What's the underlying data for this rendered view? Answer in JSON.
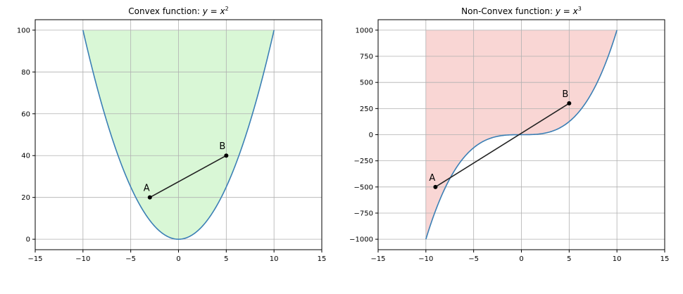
{
  "chart_data": [
    {
      "type": "line",
      "title": "Convex function: y = x²",
      "title_prefix": "Convex function: ",
      "title_formula": {
        "lhs": "y",
        "eq": " = ",
        "base": "x",
        "exp": "2"
      },
      "function": "x^2",
      "x_domain": [
        -10,
        10
      ],
      "xlim": [
        -15,
        15
      ],
      "ylim": [
        -5,
        105
      ],
      "xticks": [
        -15,
        -10,
        -5,
        0,
        5,
        10,
        15
      ],
      "yticks": [
        0,
        20,
        40,
        60,
        80,
        100
      ],
      "xtick_labels": [
        "−15",
        "−10",
        "−5",
        "0",
        "5",
        "10",
        "15"
      ],
      "ytick_labels": [
        "0",
        "20",
        "40",
        "60",
        "80",
        "100"
      ],
      "grid": true,
      "fill": {
        "region": "between curve and y=100",
        "color": "#d9f7d6"
      },
      "line_color": "#3b7fb5",
      "segment": {
        "points": [
          {
            "label": "A",
            "x": -3,
            "y": 20
          },
          {
            "label": "B",
            "x": 5,
            "y": 40
          }
        ],
        "color": "#222222"
      }
    },
    {
      "type": "line",
      "title": "Non-Convex function: y = x³",
      "title_prefix": "Non-Convex function: ",
      "title_formula": {
        "lhs": "y",
        "eq": " = ",
        "base": "x",
        "exp": "3"
      },
      "function": "x^3",
      "x_domain": [
        -10,
        10
      ],
      "xlim": [
        -15,
        15
      ],
      "ylim": [
        -1100,
        1100
      ],
      "xticks": [
        -15,
        -10,
        -5,
        0,
        5,
        10,
        15
      ],
      "yticks": [
        -1000,
        -750,
        -500,
        -250,
        0,
        250,
        500,
        750,
        1000
      ],
      "xtick_labels": [
        "−15",
        "−10",
        "−5",
        "0",
        "5",
        "10",
        "15"
      ],
      "ytick_labels": [
        "−1000",
        "−750",
        "−500",
        "−250",
        "0",
        "250",
        "500",
        "750",
        "1000"
      ],
      "grid": true,
      "fill": {
        "region": "between curve and y=1000",
        "color": "#f9d6d4"
      },
      "line_color": "#3b7fb5",
      "segment": {
        "points": [
          {
            "label": "A",
            "x": -9,
            "y": -500
          },
          {
            "label": "B",
            "x": 5,
            "y": 300
          }
        ],
        "color": "#222222"
      }
    }
  ]
}
